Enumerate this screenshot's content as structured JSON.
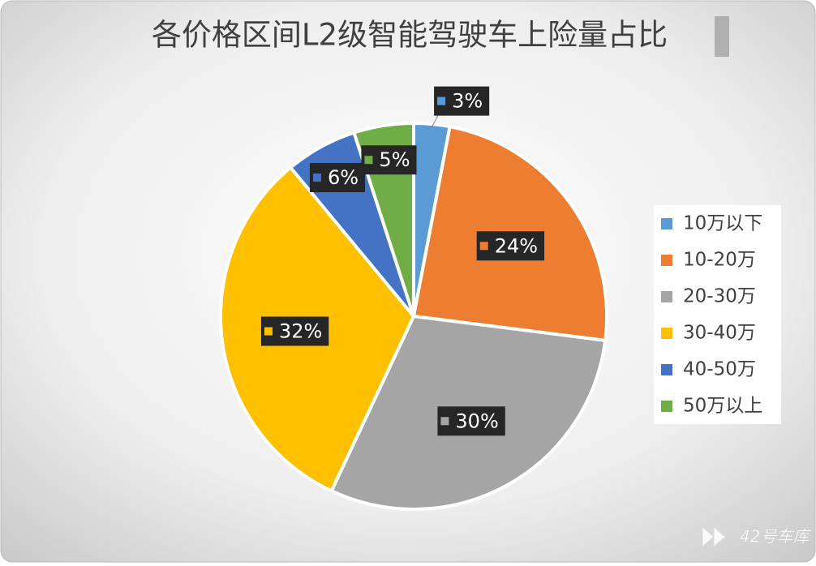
{
  "chart_data": {
    "type": "pie",
    "title": "各价格区间L2级智能驾驶车上险量占比",
    "categories": [
      "10万以下",
      "10-20万",
      "20-30万",
      "30-40万",
      "40-50万",
      "50万以上"
    ],
    "values": [
      3,
      24,
      30,
      32,
      6,
      5
    ],
    "value_labels": [
      "3%",
      "24%",
      "30%",
      "32%",
      "6%",
      "5%"
    ],
    "colors": [
      "#5b9bd5",
      "#ed7d31",
      "#a5a5a5",
      "#ffc000",
      "#4472c4",
      "#70ad47"
    ],
    "legend": "right"
  },
  "watermark": "42号车库"
}
